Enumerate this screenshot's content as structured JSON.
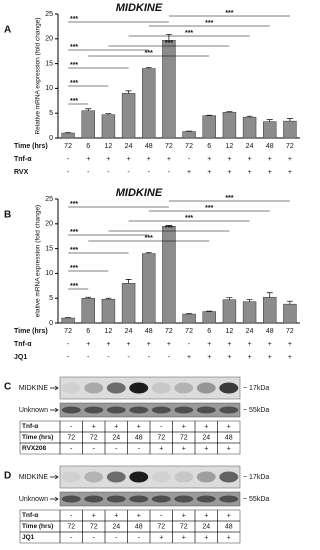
{
  "chart_data": [
    {
      "type": "bar",
      "panel": "A",
      "title": "MIDKINE",
      "y_label": "Relative mRNA expression (fold change)",
      "x_label": "Time (hrs)",
      "categories": [
        "72",
        "6",
        "12",
        "24",
        "48",
        "72",
        "72",
        "6",
        "12",
        "24",
        "48",
        "72"
      ],
      "series": [
        {
          "color": "#8c8c8c",
          "values": [
            1,
            5.5,
            4.7,
            9,
            14,
            19.7,
            1.3,
            4.5,
            5.2,
            4.2,
            3.3,
            3.4
          ],
          "errors": [
            0.1,
            0.4,
            0.2,
            0.5,
            0.2,
            1.2,
            0.1,
            0.1,
            0.1,
            0.2,
            0.4,
            0.5
          ]
        }
      ],
      "conditions": [
        {
          "name": "Tnf-α",
          "values": [
            "-",
            "+",
            "+",
            "+",
            "+",
            "+",
            "-",
            "+",
            "+",
            "+",
            "+",
            "+"
          ]
        },
        {
          "name": "RVX",
          "values": [
            "-",
            "-",
            "-",
            "-",
            "-",
            "-",
            "+",
            "+",
            "+",
            "+",
            "+",
            "+"
          ]
        }
      ],
      "annotations": [
        "***",
        "***",
        "***",
        "***",
        "***",
        "***",
        "***",
        "***",
        "***",
        "***"
      ],
      "ylim": [
        0,
        25
      ],
      "yticks": [
        0,
        5,
        10,
        15,
        20,
        25
      ]
    },
    {
      "type": "bar",
      "panel": "B",
      "title": "MIDKINE",
      "y_label": "elative mRNA expression (fold change)",
      "x_label": "Time (hrs)",
      "categories": [
        "72",
        "6",
        "12",
        "24",
        "48",
        "72",
        "72",
        "6",
        "12",
        "24",
        "48",
        "72"
      ],
      "series": [
        {
          "color": "#8c8c8c",
          "values": [
            1,
            5,
            4.8,
            8,
            14,
            19.5,
            1.8,
            2.3,
            4.7,
            4.3,
            5.2,
            3.8
          ],
          "errors": [
            0.1,
            0.2,
            0.2,
            0.8,
            0.2,
            0.2,
            0.1,
            0.1,
            0.4,
            0.4,
            0.9,
            0.6
          ]
        }
      ],
      "conditions": [
        {
          "name": "Tnf-α",
          "values": [
            "-",
            "+",
            "+",
            "+",
            "+",
            "+",
            "-",
            "+",
            "+",
            "+",
            "+",
            "+"
          ]
        },
        {
          "name": "JQ1",
          "values": [
            "-",
            "-",
            "-",
            "-",
            "-",
            "-",
            "+",
            "+",
            "+",
            "+",
            "+",
            "+"
          ]
        }
      ],
      "annotations": [
        "***",
        "***",
        "***",
        "***",
        "***",
        "***",
        "***",
        "***",
        "***",
        "***"
      ],
      "ylim": [
        0,
        25
      ],
      "yticks": [
        0,
        5,
        10,
        15,
        20,
        25
      ]
    }
  ],
  "blots": [
    {
      "panel": "C",
      "bands": [
        "MIDKINE",
        "Unknown"
      ],
      "sizes": [
        "~ 17kDa",
        "~ 55kDa"
      ],
      "rows": [
        {
          "name": "Tnf-α",
          "values": [
            "-",
            "+",
            "+",
            "+",
            "-",
            "+",
            "+",
            "+"
          ]
        },
        {
          "name": "Time (hrs)",
          "values": [
            "72",
            "72",
            "24",
            "48",
            "72",
            "72",
            "24",
            "48"
          ]
        },
        {
          "name": "RVX208",
          "values": [
            "-",
            "-",
            "-",
            "-",
            "+",
            "+",
            "+",
            "+"
          ]
        }
      ]
    },
    {
      "panel": "D",
      "bands": [
        "MIDKINE",
        "Unknown"
      ],
      "sizes": [
        "~ 17kDa",
        "~ 55kDa"
      ],
      "rows": [
        {
          "name": "Tnf-α",
          "values": [
            "-",
            "+",
            "+",
            "+",
            "-",
            "+",
            "+",
            "+"
          ]
        },
        {
          "name": "Time (hrs)",
          "values": [
            "72",
            "72",
            "24",
            "48",
            "72",
            "72",
            "24",
            "48"
          ]
        },
        {
          "name": "JQ1",
          "values": [
            "-",
            "-",
            "-",
            "-",
            "+",
            "+",
            "+",
            "+"
          ]
        }
      ]
    }
  ]
}
